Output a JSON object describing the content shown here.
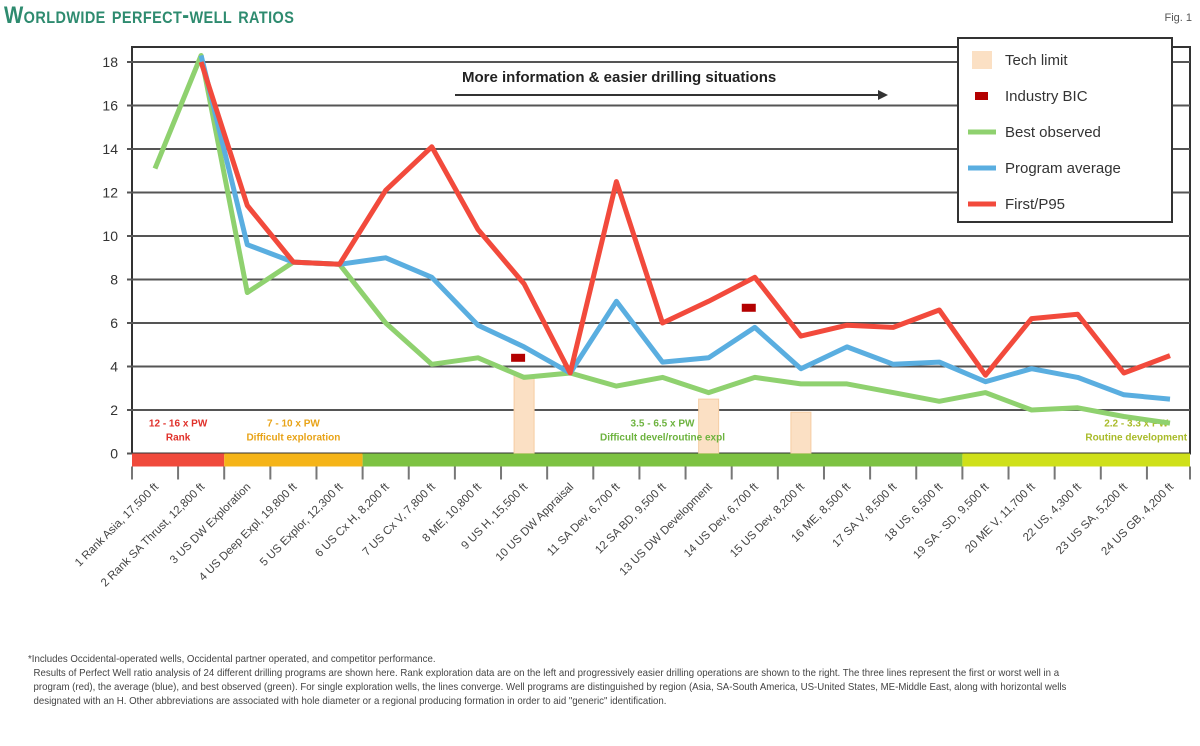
{
  "title": "Worldwide perfect-well ratios",
  "fig_label": "Fig. 1",
  "chart_data": {
    "type": "line",
    "title": "Worldwide perfect-well ratios",
    "xlabel": "",
    "ylabel": "",
    "ylim": [
      0,
      18
    ],
    "yticks": [
      0,
      2,
      4,
      6,
      8,
      10,
      12,
      14,
      16,
      18
    ],
    "grid": true,
    "legend_position": "top-right",
    "annotation": "More information & easier drilling situations",
    "categories": [
      "1 Rank Asia, 17,500 ft",
      "2 Rank SA Thrust, 12,800 ft",
      "3 US DW Exploration",
      "4 US Deep Expl, 19,800 ft",
      "5 US Explor, 12,300 ft",
      "6 US Cx H, 8,200 ft",
      "7 US Cx V, 7,800 ft",
      "8 ME, 10,800 ft",
      "9 US H, 15,500 ft",
      "10 US DW Appraisal",
      "11 SA Dev, 6,700 ft",
      "12 SA BD, 9,500 ft",
      "13 US DW Development",
      "14 US Dev, 6,700 ft",
      "15 US Dev, 8,200 ft",
      "16 ME, 8,500 ft",
      "17 SA V, 8,500 ft",
      "18 US, 6,500 ft",
      "19 SA - SD, 9,500 ft",
      "20 ME V, 11,700 ft",
      "22 US, 4,300 ft",
      "23 US SA, 5,200 ft",
      "24 US GB, 4,200 ft"
    ],
    "series": [
      {
        "name": "Best observed",
        "color": "#8fd16f",
        "values": [
          13.1,
          18.3,
          7.4,
          8.8,
          8.7,
          6.0,
          4.1,
          4.4,
          3.5,
          3.7,
          3.1,
          3.5,
          2.8,
          3.5,
          3.2,
          3.2,
          2.8,
          2.4,
          2.8,
          2.0,
          2.1,
          1.7,
          1.4
        ]
      },
      {
        "name": "Program average",
        "color": "#5aaee0",
        "values": [
          null,
          18.3,
          9.6,
          8.8,
          8.7,
          9.0,
          8.1,
          5.9,
          4.9,
          3.7,
          7.0,
          4.2,
          4.4,
          5.8,
          3.9,
          4.9,
          4.1,
          4.2,
          3.3,
          3.9,
          3.5,
          2.7,
          2.5
        ]
      },
      {
        "name": "First/P95",
        "color": "#f24a3c",
        "values": [
          null,
          18.0,
          11.4,
          8.8,
          8.7,
          12.1,
          14.1,
          10.3,
          7.8,
          3.7,
          12.5,
          6.0,
          7.0,
          8.1,
          5.4,
          5.9,
          5.8,
          6.6,
          3.6,
          6.2,
          6.4,
          3.7,
          4.5
        ]
      }
    ],
    "industry_bic": [
      {
        "category": "9 US H, 15,500 ft",
        "value": 4.4
      },
      {
        "category": "14 US Dev, 6,700 ft",
        "value": 6.7
      }
    ],
    "tech_limit": [
      {
        "category": "9 US H, 15,500 ft",
        "value": 3.6
      },
      {
        "category": "13 US DW Development",
        "value": 2.5
      },
      {
        "category": "15 US Dev, 8,200 ft",
        "value": 1.9
      }
    ],
    "legend": [
      {
        "label": "Tech limit",
        "kind": "bar",
        "color": "#fbe0c4"
      },
      {
        "label": "Industry BIC",
        "kind": "marker",
        "color": "#b30000"
      },
      {
        "label": "Best observed",
        "kind": "line",
        "color": "#8fd16f"
      },
      {
        "label": "Program average",
        "kind": "line",
        "color": "#5aaee0"
      },
      {
        "label": "First/P95",
        "kind": "line",
        "color": "#f24a3c"
      }
    ],
    "bands": [
      {
        "from": "1 Rank Asia, 17,500 ft",
        "to": "2 Rank SA Thrust, 12,800 ft",
        "color": "#f04a3c",
        "label_color": "#e0302a",
        "range": "12 - 16 x PW",
        "label": "Rank"
      },
      {
        "from": "3 US DW Exploration",
        "to": "5 US Explor, 12,300 ft",
        "color": "#f5b418",
        "label_color": "#e8a317",
        "range": "7 - 10 x PW",
        "label": "Difficult exploration"
      },
      {
        "from": "6 US Cx H, 8,200 ft",
        "to": "18 US, 6,500 ft",
        "color": "#7dc242",
        "label_color": "#6db33f",
        "range": "3.5 - 6.5 x PW",
        "label": "Difficult devel/routine expl"
      },
      {
        "from": "19 SA - SD, 9,500 ft",
        "to": "24 US GB, 4,200 ft",
        "color": "#cfe01a",
        "label_color": "#a9bb2a",
        "range": "2.2 - 3.3 x PW",
        "label": "Routine development"
      }
    ]
  },
  "notes": [
    "*Includes Occidental-operated wells, Occidental partner operated, and competitor performance.",
    "Results of Perfect Well ratio analysis of 24 different drilling programs are shown here. Rank exploration data are on the left and progressively easier drilling operations are shown to the right. The three lines represent the first or worst well in a program (red), the average (blue), and best observed (green). For single exploration wells, the lines converge. Well programs are distinguished by region (Asia, SA-South America, US-United States, ME-Middle East, along with horizontal wells designated with an H. Other abbreviations are associated with hole diameter or a regional producing formation in order to aid \"generic\" identification."
  ]
}
